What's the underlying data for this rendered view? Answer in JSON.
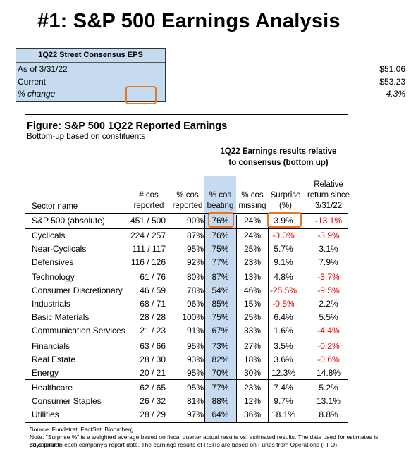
{
  "title": "#1: S&P 500 Earnings Analysis",
  "eps_box": {
    "header": "1Q22 Street Consensus EPS",
    "rows": [
      {
        "label": "As of  3/31/22",
        "value": "$51.06"
      },
      {
        "label": "Current",
        "value": "$53.23"
      },
      {
        "label": "% change",
        "value": "4.3%"
      }
    ]
  },
  "figure": {
    "title": "Figure: S&P 500 1Q22 Reported Earnings",
    "subtitle": "Bottom-up based on constituents",
    "group_header_line1": "1Q22 Earnings results relative",
    "group_header_line2": "to consensus (bottom up)"
  },
  "columns": {
    "sector": "Sector name",
    "reported_1": "# cos",
    "reported_2": "reported",
    "pct_reported_1": "% cos",
    "pct_reported_2": "reported",
    "beating_1": "% cos",
    "beating_2": "beating",
    "missing_1": "% cos",
    "missing_2": "missing",
    "surprise_1": "Surprise",
    "surprise_2": "(%)",
    "relative_1": "Relative",
    "relative_2": "return since",
    "relative_3": "3/31/22"
  },
  "rows": [
    {
      "name": "S&P 500 (absolute)",
      "reported": "451 / 500",
      "pct_reported": "90%",
      "beating": "76%",
      "missing": "24%",
      "surprise": "3.9%",
      "relative": "-13.1%",
      "rel_neg": true,
      "surp_neg": false
    },
    {
      "name": "Cyclicals",
      "reported": "224 / 257",
      "pct_reported": "87%",
      "beating": "76%",
      "missing": "24%",
      "surprise": "-0.0%",
      "relative": "-3.9%",
      "rel_neg": true,
      "surp_neg": true
    },
    {
      "name": "Near-Cyclicals",
      "reported": "111 / 117",
      "pct_reported": "95%",
      "beating": "75%",
      "missing": "25%",
      "surprise": "5.7%",
      "relative": "3.1%",
      "rel_neg": false,
      "surp_neg": false
    },
    {
      "name": "Defensives",
      "reported": "116 / 126",
      "pct_reported": "92%",
      "beating": "77%",
      "missing": "23%",
      "surprise": "9.1%",
      "relative": "7.9%",
      "rel_neg": false,
      "surp_neg": false
    },
    {
      "name": "Technology",
      "reported": "61 / 76",
      "pct_reported": "80%",
      "beating": "87%",
      "missing": "13%",
      "surprise": "4.8%",
      "relative": "-3.7%",
      "rel_neg": true,
      "surp_neg": false
    },
    {
      "name": "Consumer Discretionary",
      "reported": "46 / 59",
      "pct_reported": "78%",
      "beating": "54%",
      "missing": "46%",
      "surprise": "-25.5%",
      "relative": "-9.5%",
      "rel_neg": true,
      "surp_neg": true
    },
    {
      "name": "Industrials",
      "reported": "68 / 71",
      "pct_reported": "96%",
      "beating": "85%",
      "missing": "15%",
      "surprise": "-0.5%",
      "relative": "2.2%",
      "rel_neg": false,
      "surp_neg": true
    },
    {
      "name": "Basic Materials",
      "reported": "28 / 28",
      "pct_reported": "100%",
      "beating": "75%",
      "missing": "25%",
      "surprise": "6.4%",
      "relative": "5.5%",
      "rel_neg": false,
      "surp_neg": false
    },
    {
      "name": "Communication Services",
      "reported": "21 / 23",
      "pct_reported": "91%",
      "beating": "67%",
      "missing": "33%",
      "surprise": "1.6%",
      "relative": "-4.4%",
      "rel_neg": true,
      "surp_neg": false
    },
    {
      "name": "Financials",
      "reported": "63 / 66",
      "pct_reported": "95%",
      "beating": "73%",
      "missing": "27%",
      "surprise": "3.5%",
      "relative": "-0.2%",
      "rel_neg": true,
      "surp_neg": false
    },
    {
      "name": "Real Estate",
      "reported": "28 / 30",
      "pct_reported": "93%",
      "beating": "82%",
      "missing": "18%",
      "surprise": "3.6%",
      "relative": "-0.6%",
      "rel_neg": true,
      "surp_neg": false
    },
    {
      "name": "Energy",
      "reported": "20 / 21",
      "pct_reported": "95%",
      "beating": "70%",
      "missing": "30%",
      "surprise": "12.3%",
      "relative": "14.8%",
      "rel_neg": false,
      "surp_neg": false
    },
    {
      "name": "Healthcare",
      "reported": "62 / 65",
      "pct_reported": "95%",
      "beating": "77%",
      "missing": "23%",
      "surprise": "7.4%",
      "relative": "5.2%",
      "rel_neg": false,
      "surp_neg": false
    },
    {
      "name": "Consumer Staples",
      "reported": "26 / 32",
      "pct_reported": "81%",
      "beating": "88%",
      "missing": "12%",
      "surprise": "9.7%",
      "relative": "13.1%",
      "rel_neg": false,
      "surp_neg": false
    },
    {
      "name": "Utilities",
      "reported": "28 / 29",
      "pct_reported": "97%",
      "beating": "64%",
      "missing": "36%",
      "surprise": "18.1%",
      "relative": "8.8%",
      "rel_neg": false,
      "surp_neg": false
    }
  ],
  "footnotes": {
    "source": "Source: Fundstrat, FactSet, Bloomberg.",
    "note_line1": "Note: \"Surprise %\" is a weighted average based on fiscal quarter actual results vs. estimated results.  The date used for estimates is 30 calendar",
    "note_line2": "days prior to each company's report date. The earnings results of REITs are based on Funds from Operations (FFO)."
  },
  "colors": {
    "highlight_blue": "#c6dbef",
    "callout_orange": "#e87722",
    "negative_red": "#e60000"
  }
}
